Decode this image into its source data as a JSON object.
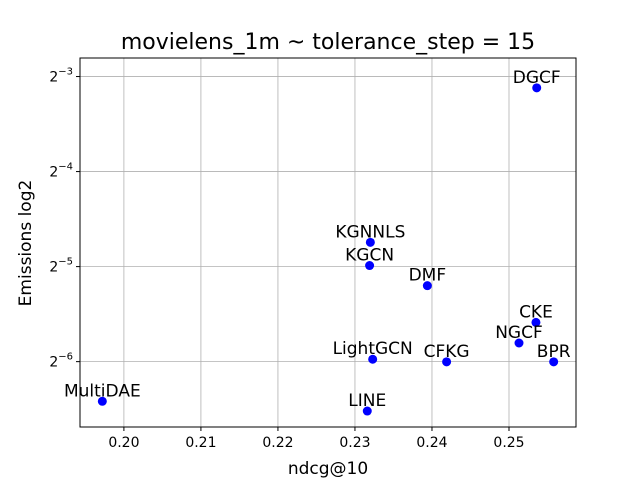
{
  "chart_data": {
    "type": "scatter",
    "title": "movielens_1m ~ tolerance_step = 15",
    "xlabel": "ndcg@10",
    "ylabel": "Emissions log2",
    "y_scale": "log2",
    "grid": true,
    "marker_color": "#0000ff",
    "xlim": [
      0.1943,
      0.2587
    ],
    "ylim": [
      0.0097,
      0.1431
    ],
    "x_ticks": [
      "0.20",
      "0.21",
      "0.22",
      "0.23",
      "0.24",
      "0.25"
    ],
    "y_ticks": [
      {
        "base": "2",
        "exponent": "−3",
        "value": 0.125
      },
      {
        "base": "2",
        "exponent": "−4",
        "value": 0.0625
      },
      {
        "base": "2",
        "exponent": "−5",
        "value": 0.03125
      },
      {
        "base": "2",
        "exponent": "−6",
        "value": 0.015625
      }
    ],
    "points": [
      {
        "label": "DGCF",
        "x": 0.2536,
        "y": 0.1151
      },
      {
        "label": "KGNNLS",
        "x": 0.232,
        "y": 0.0373
      },
      {
        "label": "KGCN",
        "x": 0.2319,
        "y": 0.0315
      },
      {
        "label": "DMF",
        "x": 0.2394,
        "y": 0.0272
      },
      {
        "label": "CKE",
        "x": 0.2535,
        "y": 0.0208
      },
      {
        "label": "NGCF",
        "x": 0.2513,
        "y": 0.0179
      },
      {
        "label": "BPR",
        "x": 0.2558,
        "y": 0.0156
      },
      {
        "label": "LightGCN",
        "x": 0.2323,
        "y": 0.0159
      },
      {
        "label": "CFKG",
        "x": 0.2419,
        "y": 0.0156
      },
      {
        "label": "MultiDAE",
        "x": 0.1972,
        "y": 0.0117
      },
      {
        "label": "LINE",
        "x": 0.2316,
        "y": 0.0109
      }
    ]
  }
}
